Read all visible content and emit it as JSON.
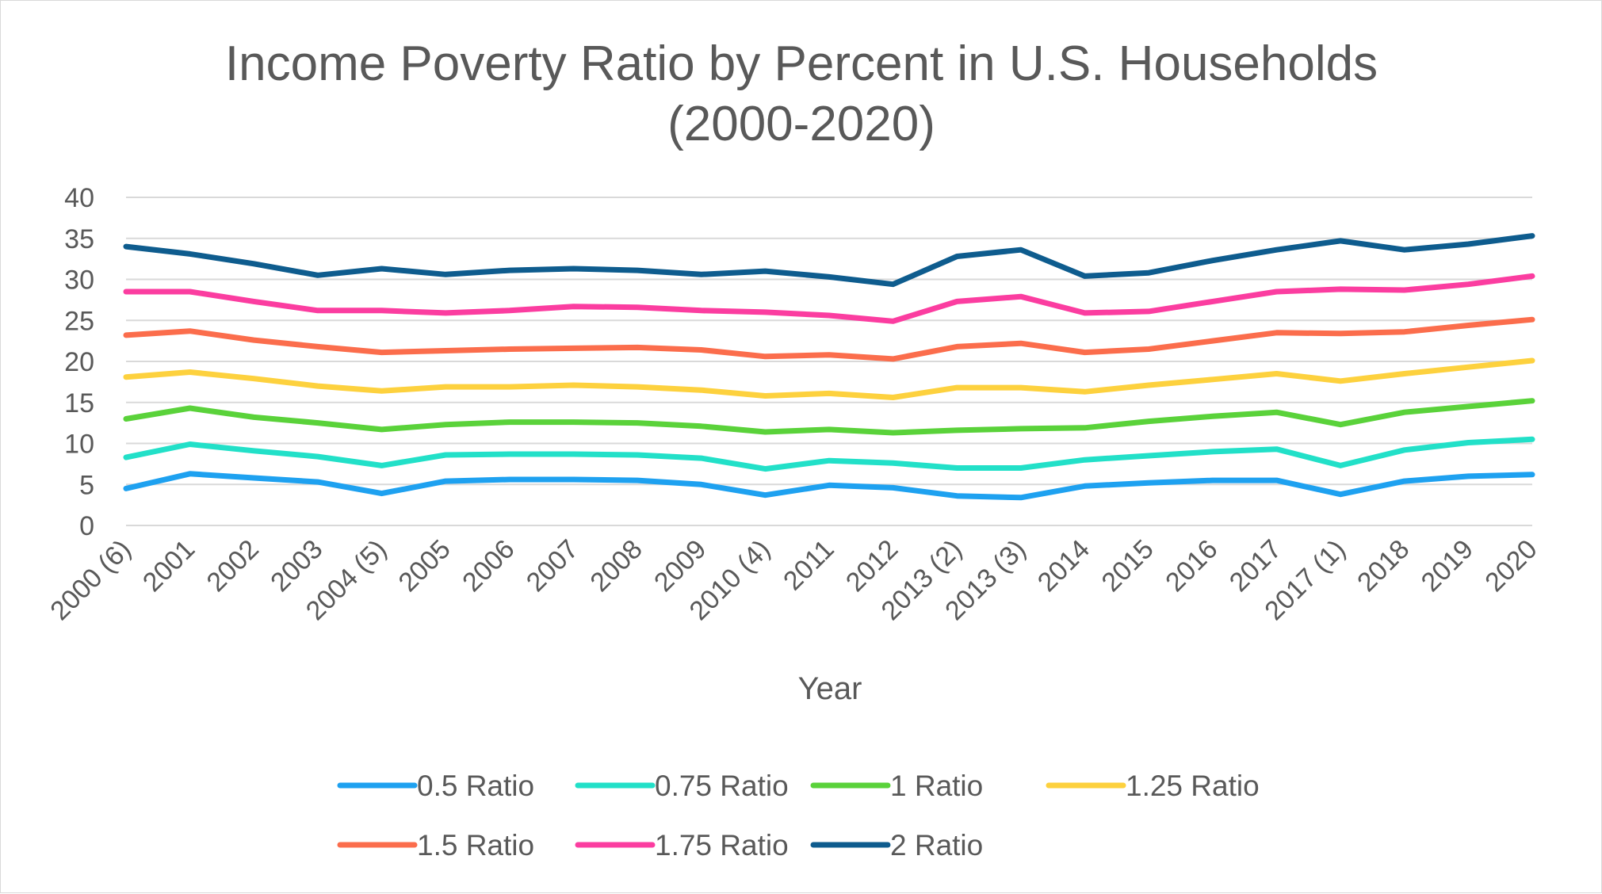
{
  "chart_data": {
    "type": "line",
    "title_lines": [
      "Income Poverty Ratio by Percent in U.S. Households",
      "(2000-2020)"
    ],
    "xlabel": "Year",
    "ylabel": "",
    "ylim": [
      0,
      40
    ],
    "yticks": [
      0,
      5,
      10,
      15,
      20,
      25,
      30,
      35,
      40
    ],
    "grid": true,
    "legend_position": "bottom",
    "categories": [
      "2000 (6)",
      "2001",
      "2002",
      "2003",
      "2004 (5)",
      "2005",
      "2006",
      "2007",
      "2008",
      "2009",
      "2010 (4)",
      "2011",
      "2012",
      "2013 (2)",
      "2013 (3)",
      "2014",
      "2015",
      "2016",
      "2017",
      "2017 (1)",
      "2018",
      "2019",
      "2020"
    ],
    "series": [
      {
        "name": "0.5 Ratio",
        "color": "#1ea1f0",
        "values": [
          4.5,
          6.3,
          5.8,
          5.3,
          3.9,
          5.4,
          5.6,
          5.6,
          5.5,
          5.0,
          3.7,
          4.9,
          4.6,
          3.6,
          3.4,
          4.8,
          5.2,
          5.5,
          5.5,
          3.8,
          5.4,
          6.0,
          6.2
        ]
      },
      {
        "name": "0.75 Ratio",
        "color": "#22e0c8",
        "values": [
          8.3,
          9.9,
          9.1,
          8.4,
          7.3,
          8.6,
          8.7,
          8.7,
          8.6,
          8.2,
          6.9,
          7.9,
          7.6,
          7.0,
          7.0,
          8.0,
          8.5,
          9.0,
          9.3,
          7.3,
          9.2,
          10.1,
          10.5
        ]
      },
      {
        "name": "1 Ratio",
        "color": "#5ad23a",
        "values": [
          13.0,
          14.3,
          13.2,
          12.5,
          11.7,
          12.3,
          12.6,
          12.6,
          12.5,
          12.1,
          11.4,
          11.7,
          11.3,
          11.6,
          11.8,
          11.9,
          12.7,
          13.3,
          13.8,
          12.3,
          13.8,
          14.5,
          15.2
        ]
      },
      {
        "name": "1.25 Ratio",
        "color": "#fdd13e",
        "values": [
          18.1,
          18.7,
          17.9,
          17.0,
          16.4,
          16.9,
          16.9,
          17.1,
          16.9,
          16.5,
          15.8,
          16.1,
          15.6,
          16.8,
          16.8,
          16.3,
          17.1,
          17.8,
          18.5,
          17.6,
          18.5,
          19.3,
          20.1
        ]
      },
      {
        "name": "1.5 Ratio",
        "color": "#fb6d4c",
        "values": [
          23.2,
          23.7,
          22.6,
          21.8,
          21.1,
          21.3,
          21.5,
          21.6,
          21.7,
          21.4,
          20.6,
          20.8,
          20.3,
          21.8,
          22.2,
          21.1,
          21.5,
          22.5,
          23.5,
          23.4,
          23.6,
          24.4,
          25.1
        ]
      },
      {
        "name": "1.75 Ratio",
        "color": "#fb3da0",
        "values": [
          28.5,
          28.5,
          27.3,
          26.2,
          26.2,
          25.9,
          26.2,
          26.7,
          26.6,
          26.2,
          26.0,
          25.6,
          24.9,
          27.3,
          27.9,
          25.9,
          26.1,
          27.3,
          28.5,
          28.8,
          28.7,
          29.4,
          30.4
        ]
      },
      {
        "name": "2 Ratio",
        "color": "#0e5c8e",
        "values": [
          34.0,
          33.1,
          31.9,
          30.5,
          31.3,
          30.6,
          31.1,
          31.3,
          31.1,
          30.6,
          31.0,
          30.3,
          29.4,
          32.8,
          33.6,
          30.4,
          30.8,
          32.3,
          33.6,
          34.7,
          33.6,
          34.3,
          35.3
        ]
      }
    ]
  }
}
